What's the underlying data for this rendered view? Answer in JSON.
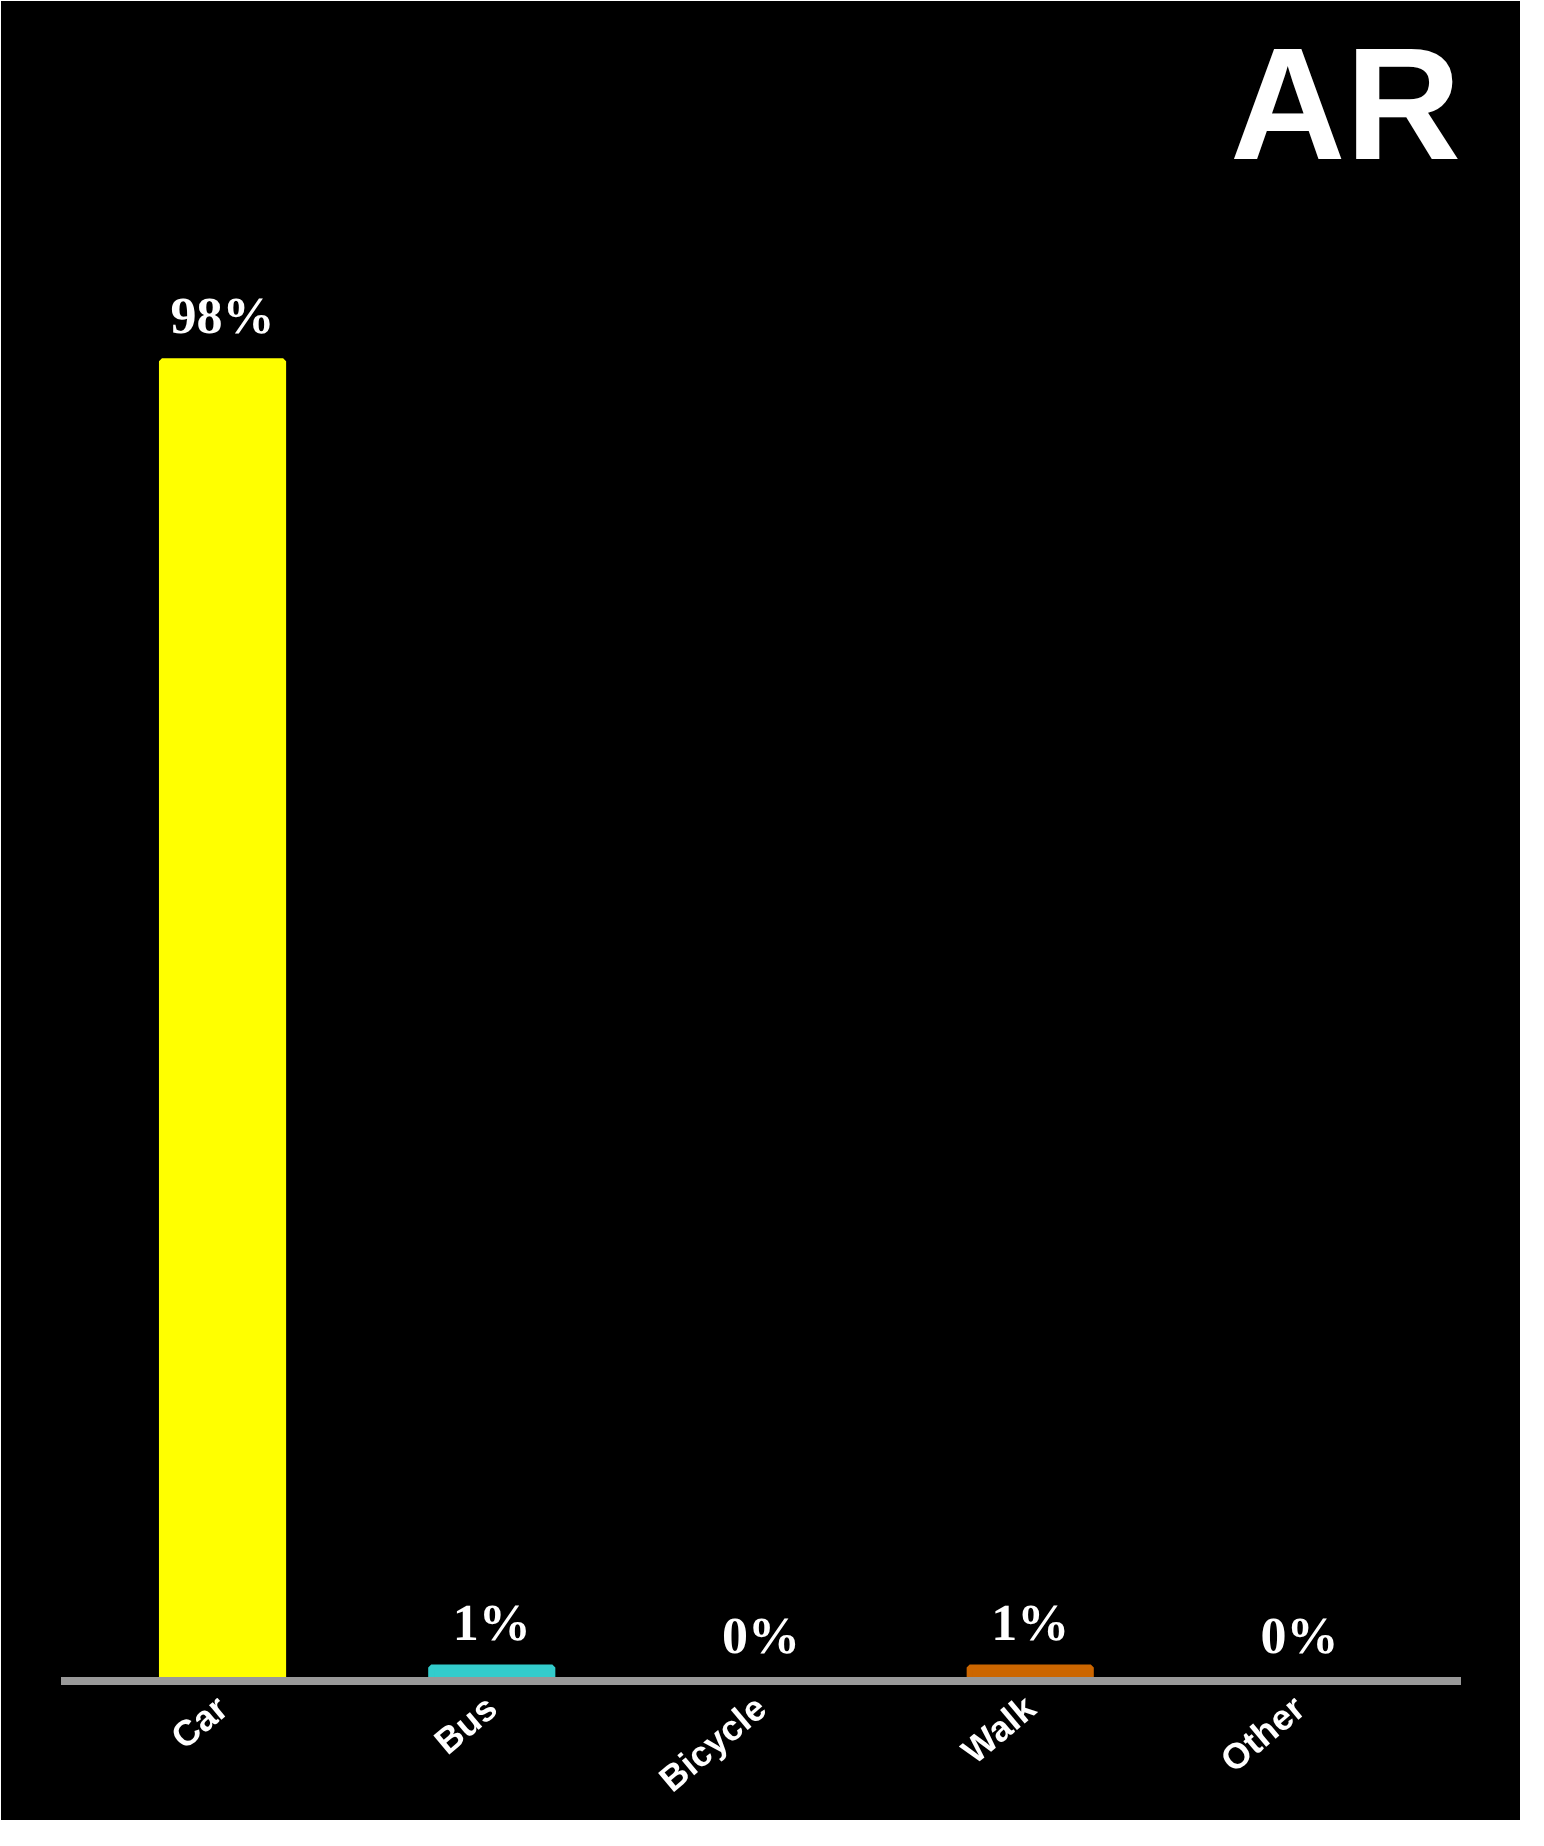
{
  "chart_data": {
    "type": "bar",
    "title": "AR",
    "categories": [
      "Car",
      "Bus",
      "Bicycle",
      "Walk",
      "Other"
    ],
    "values": [
      98,
      1,
      0,
      1,
      0
    ],
    "value_labels": [
      "98%",
      "1%",
      "0%",
      "1%",
      "0%"
    ],
    "colors": [
      "#ffff00",
      "#33cccc",
      "#00cc00",
      "#cc6600",
      "#c0c0c0"
    ],
    "data_labels": false
  }
}
